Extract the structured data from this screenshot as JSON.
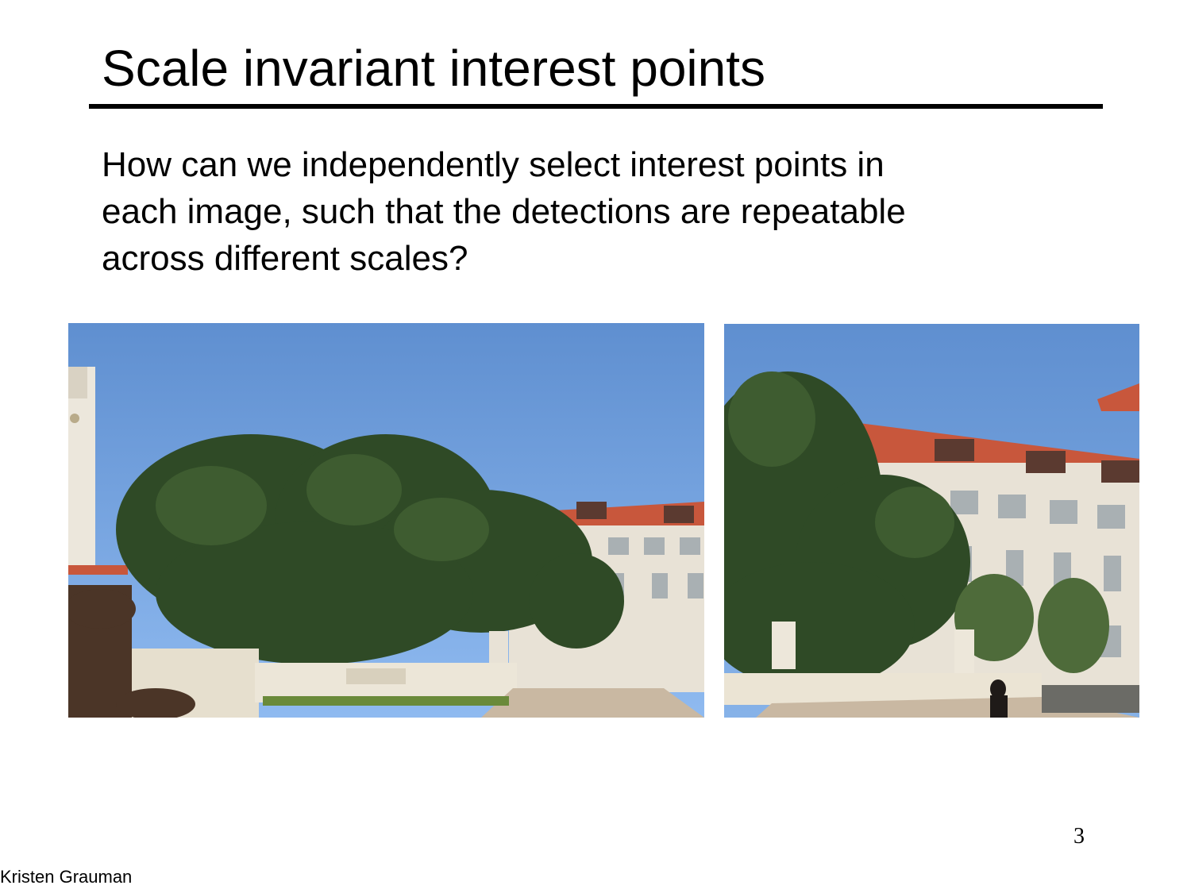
{
  "slide": {
    "title": "Scale invariant interest points",
    "body_lines": [
      "How can we independently select interest points in",
      "each image, such that the detections are repeatable",
      "across different scales?"
    ],
    "page_number": "3",
    "credit": "Kristen Grauman"
  },
  "images": {
    "left": "campus-photo-wide-view",
    "right": "campus-photo-zoomed-view"
  },
  "colors": {
    "sky_top": "#5f8fd0",
    "sky_bottom": "#8fbaf0",
    "roof": "#c8573c",
    "wall": "#e8e2d6",
    "tree": "#2f4a26"
  }
}
